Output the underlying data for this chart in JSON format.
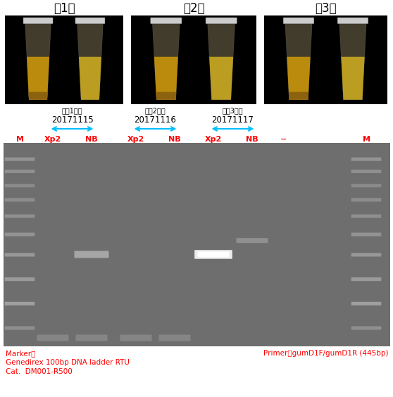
{
  "title_day1": "的1天",
  "title_day2": "的2天",
  "title_day3": "的3天",
  "date1_label": "（的1天）",
  "date1": "20171115",
  "date2_label": "（的2天）",
  "date2": "20171116",
  "date3_label": "（的3天）",
  "date3": "20171117",
  "lane_labels": [
    "M",
    "Xp2",
    "NB",
    "Xp2",
    "NB",
    "Xp2",
    "NB",
    "−",
    "M"
  ],
  "lane_label_color": "#ff0000",
  "arrow_color": "#00bfff",
  "marker_text1": "Marker：",
  "marker_text2": "Genedirex 100bp DNA ladder RTU",
  "marker_text3": "Cat.  DM001-R500",
  "primer_text": "Primer：gumD1F/gumD1R (445bp)",
  "footer_color": "#ff0000",
  "bg_color": "#ffffff",
  "gel_bg": "#6e6e6e"
}
